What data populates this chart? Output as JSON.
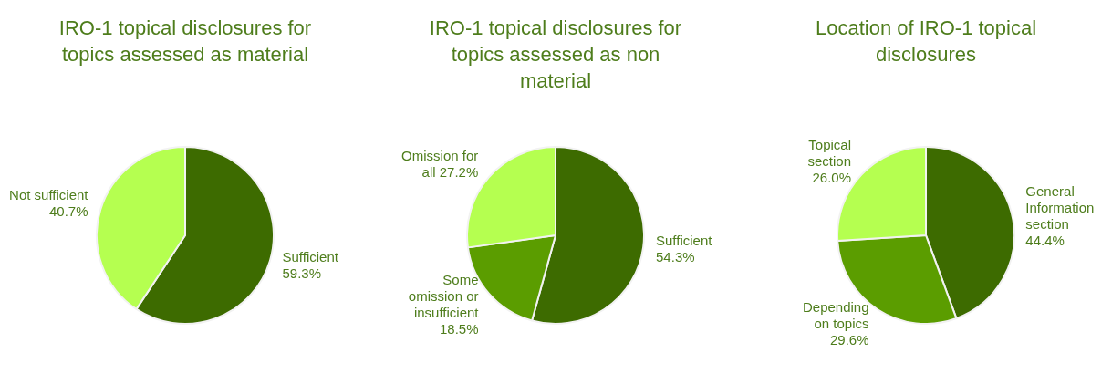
{
  "chart_data": [
    {
      "type": "pie",
      "title": "IRO-1 topical disclosures for topics assessed as material",
      "categories": [
        "Sufficient",
        "Not sufficient"
      ],
      "values": [
        59.3,
        40.7
      ],
      "colors": [
        "#3d6b00",
        "#b5ff50"
      ],
      "value_labels": [
        "59.3%",
        "40.7%"
      ],
      "legend": false
    },
    {
      "type": "pie",
      "title": "IRO-1 topical disclosures for topics assessed as non material",
      "categories": [
        "Sufficient",
        "Some omission or insufficient",
        "Omission for all"
      ],
      "values": [
        54.3,
        18.5,
        27.2
      ],
      "colors": [
        "#3d6b00",
        "#5b9d00",
        "#b5ff50"
      ],
      "value_labels": [
        "54.3%",
        "18.5%",
        "27.2%"
      ],
      "legend": false
    },
    {
      "type": "pie",
      "title": "Location of IRO-1 topical disclosures",
      "categories": [
        "General Information section",
        "Depending on topics",
        "Topical section"
      ],
      "values": [
        44.4,
        29.6,
        26.0
      ],
      "colors": [
        "#3d6b00",
        "#5b9d00",
        "#b5ff50"
      ],
      "value_labels": [
        "44.4%",
        "29.6%",
        "26.0%"
      ],
      "legend": false
    }
  ]
}
